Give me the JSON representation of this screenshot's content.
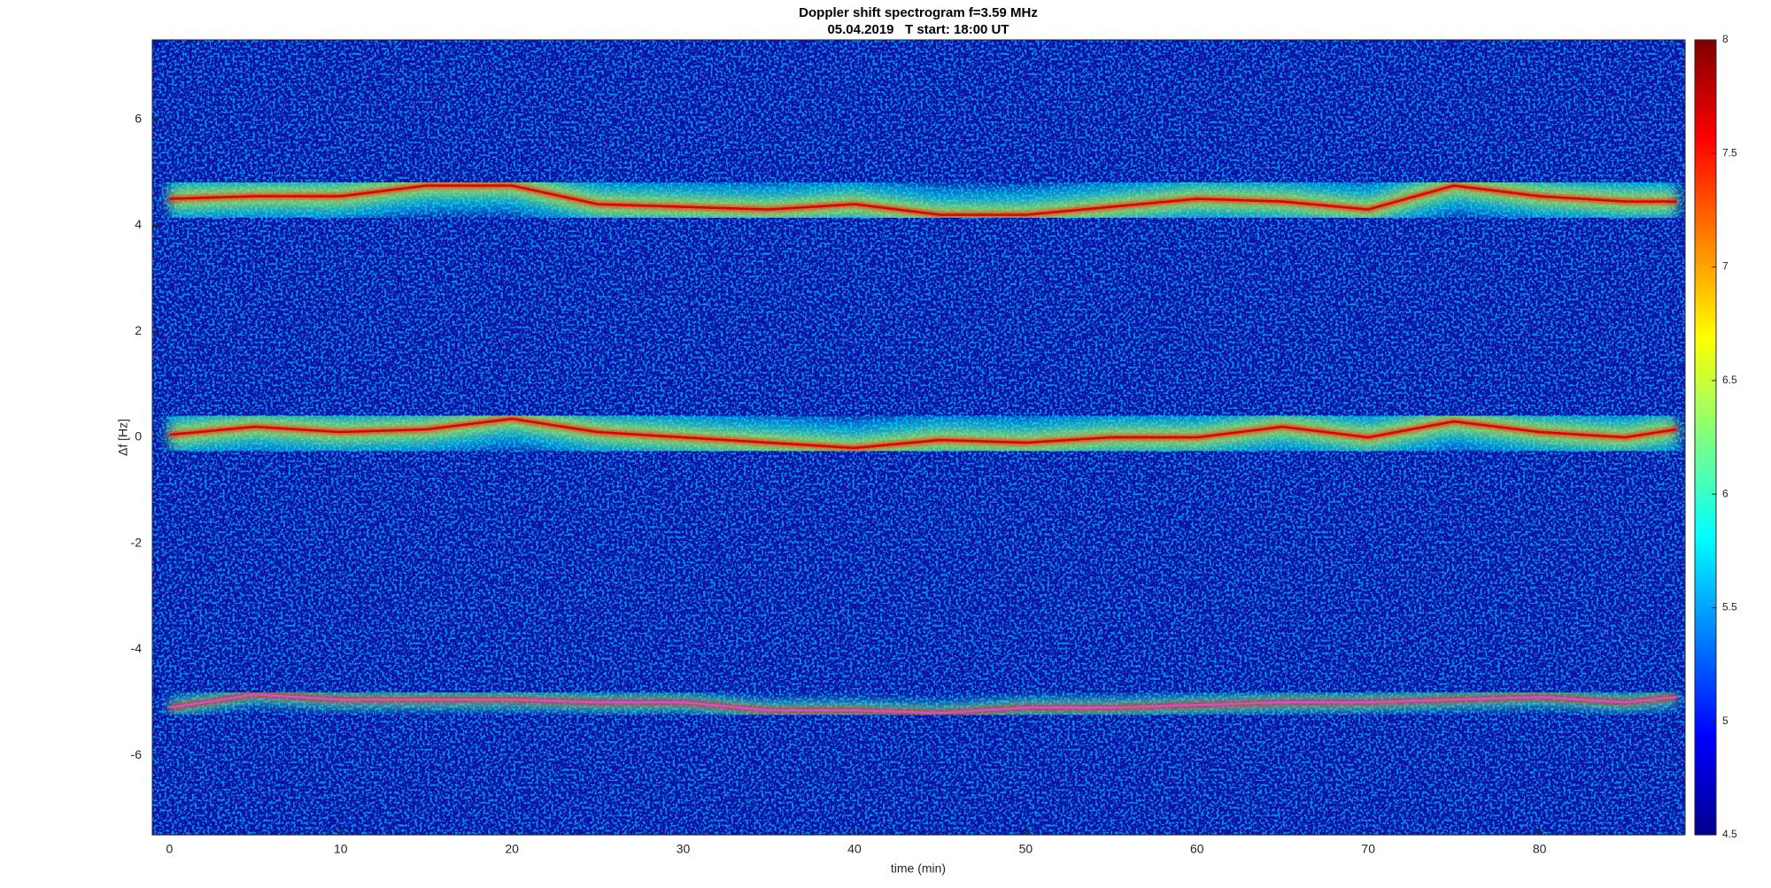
{
  "chart_data": {
    "type": "spectrogram",
    "title": "Doppler shift spectrogram f=3.59 MHz",
    "subtitle": "05.04.2019   T start: 18:00 UT",
    "x_label": "time (min)",
    "y_label": "Δf [Hz]",
    "xlim": [
      -1,
      88.5
    ],
    "ylim": [
      -7.5,
      7.5
    ],
    "xticks": [
      0,
      10,
      20,
      30,
      40,
      50,
      60,
      70,
      80
    ],
    "yticks": [
      -6,
      -4,
      -2,
      0,
      2,
      4,
      6
    ],
    "colormap": "jet",
    "clim": [
      4.5,
      8
    ],
    "cticks": [
      4.5,
      5,
      5.5,
      6,
      6.5,
      7,
      7.5,
      8
    ],
    "x": [
      0,
      5,
      10,
      15,
      20,
      25,
      30,
      35,
      40,
      45,
      50,
      55,
      60,
      65,
      70,
      75,
      80,
      85,
      88
    ],
    "series": [
      {
        "color": "#e00000",
        "values": [
          4.5,
          4.55,
          4.55,
          4.75,
          4.75,
          4.4,
          4.35,
          4.3,
          4.4,
          4.2,
          4.2,
          4.35,
          4.5,
          4.45,
          4.3,
          4.75,
          4.55,
          4.45,
          4.45
        ]
      },
      {
        "color": "#e00000",
        "values": [
          0.05,
          0.2,
          0.1,
          0.15,
          0.35,
          0.1,
          0,
          -0.1,
          -0.2,
          -0.05,
          -0.1,
          0,
          0,
          0.2,
          0,
          0.3,
          0.1,
          0,
          0.15
        ]
      },
      {
        "color": "#d050d0",
        "values": [
          -5.1,
          -4.85,
          -4.95,
          -4.95,
          -4.95,
          -5.0,
          -5.0,
          -5.15,
          -5.15,
          -5.2,
          -5.1,
          -5.1,
          -5.05,
          -5.0,
          -5.0,
          -4.95,
          -4.9,
          -5.0,
          -4.9
        ]
      }
    ]
  }
}
